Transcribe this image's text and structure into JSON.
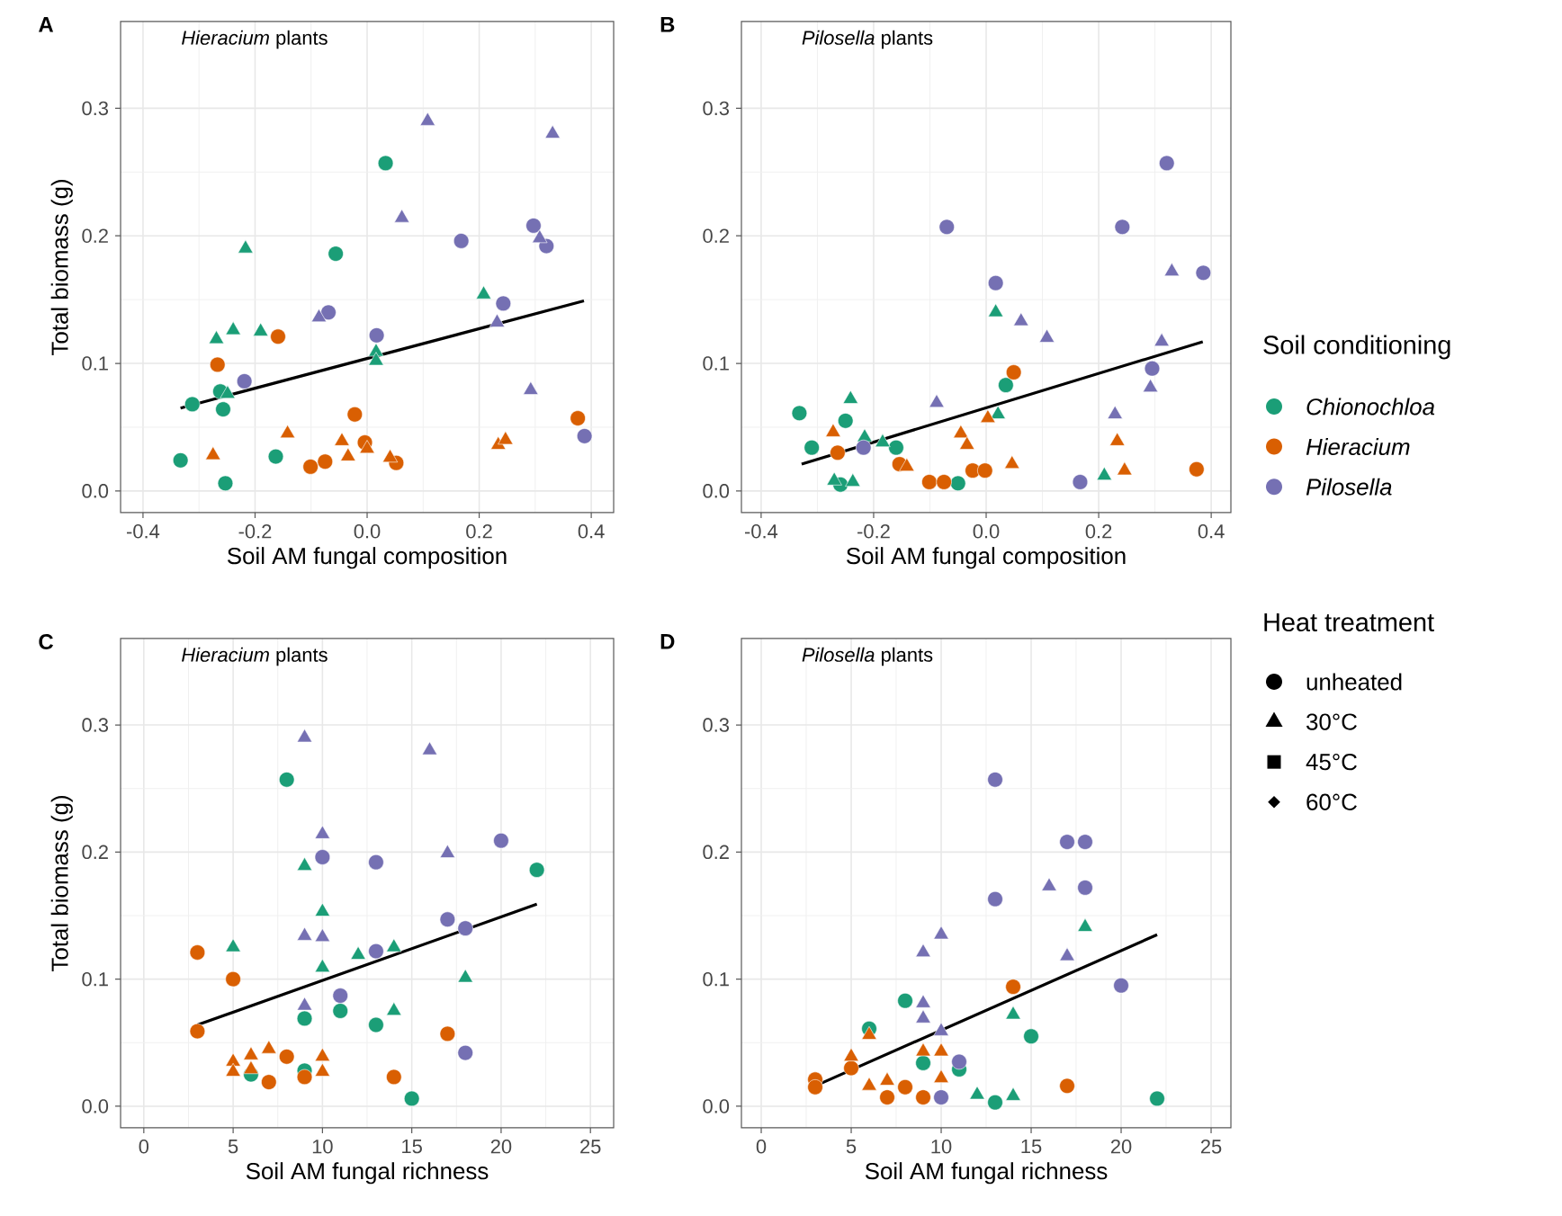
{
  "chart_data": [
    {
      "type": "scatter",
      "title": "A",
      "annotations": [
        "*Hieracium* plants"
      ],
      "xlabel": "Soil AM fungal composition",
      "ylabel": "Total biomass (g)",
      "grid": true,
      "xlim": [
        -0.44,
        0.44
      ],
      "xticks": [
        {
          "value": -0.4,
          "label": "-0.4"
        },
        {
          "value": -0.2,
          "label": "-0.2"
        },
        {
          "value": 0.0,
          "label": "0.0"
        },
        {
          "value": 0.2,
          "label": "0.2"
        },
        {
          "value": 0.4,
          "label": "0.4"
        }
      ],
      "ylim": [
        -0.017,
        0.368
      ],
      "yticks": [
        {
          "value": 0.0,
          "label": "0.0"
        },
        {
          "value": 0.1,
          "label": "0.1"
        },
        {
          "value": 0.2,
          "label": "0.2"
        },
        {
          "value": 0.3,
          "label": "0.3"
        }
      ],
      "series": [
        {
          "color": "#1b9e77",
          "marker": "circle",
          "x": [
            -0.333,
            -0.312,
            -0.257,
            -0.253,
            -0.262,
            -0.163,
            -0.056,
            0.033
          ],
          "values": [
            0.024,
            0.068,
            0.064,
            0.006,
            0.078,
            0.027,
            0.186,
            0.257
          ]
        },
        {
          "color": "#1b9e77",
          "marker": "triangle",
          "x": [
            -0.269,
            -0.249,
            -0.239,
            -0.217,
            -0.19,
            0.016,
            0.016,
            0.208
          ],
          "values": [
            0.119,
            0.076,
            0.126,
            0.19,
            0.125,
            0.109,
            0.102,
            0.154
          ]
        },
        {
          "color": "#d95f02",
          "marker": "circle",
          "x": [
            -0.267,
            -0.159,
            -0.101,
            -0.075,
            -0.022,
            -0.004,
            0.052,
            0.376
          ],
          "values": [
            0.099,
            0.121,
            0.019,
            0.023,
            0.06,
            0.038,
            0.022,
            0.057
          ]
        },
        {
          "color": "#d95f02",
          "marker": "triangle",
          "x": [
            -0.275,
            -0.142,
            -0.045,
            -0.034,
            0.0,
            0.041,
            0.234,
            0.247
          ],
          "values": [
            0.028,
            0.045,
            0.039,
            0.027,
            0.033,
            0.026,
            0.036,
            0.04
          ]
        },
        {
          "color": "#7570b3",
          "marker": "circle",
          "x": [
            -0.219,
            -0.069,
            0.017,
            0.168,
            0.243,
            0.297,
            0.32,
            0.388
          ],
          "values": [
            0.086,
            0.14,
            0.122,
            0.196,
            0.147,
            0.208,
            0.192,
            0.043
          ]
        },
        {
          "color": "#7570b3",
          "marker": "triangle",
          "x": [
            -0.086,
            0.062,
            0.108,
            0.232,
            0.292,
            0.308,
            0.331
          ],
          "values": [
            0.136,
            0.214,
            0.29,
            0.132,
            0.079,
            0.198,
            0.28
          ]
        },
        {
          "type": "line",
          "color": "#000000",
          "marker": "none",
          "x": [
            -0.333,
            0.387
          ],
          "values": [
            0.065,
            0.149
          ]
        }
      ]
    },
    {
      "type": "scatter",
      "title": "B",
      "annotations": [
        "*Pilosella* plants"
      ],
      "xlabel": "Soil AM fungal composition",
      "grid": true,
      "xlim": [
        -0.435,
        0.435
      ],
      "xticks": [
        {
          "value": -0.4,
          "label": "-0.4"
        },
        {
          "value": -0.2,
          "label": "-0.2"
        },
        {
          "value": 0.0,
          "label": "0.0"
        },
        {
          "value": 0.2,
          "label": "0.2"
        },
        {
          "value": 0.4,
          "label": "0.4"
        }
      ],
      "ylim": [
        -0.017,
        0.368
      ],
      "yticks": [
        {
          "value": 0.0,
          "label": "0.0"
        },
        {
          "value": 0.1,
          "label": "0.1"
        },
        {
          "value": 0.2,
          "label": "0.2"
        },
        {
          "value": 0.3,
          "label": "0.3"
        }
      ],
      "series": [
        {
          "color": "#1b9e77",
          "marker": "circle",
          "x": [
            -0.332,
            -0.31,
            -0.259,
            -0.25,
            -0.16,
            -0.05,
            0.035
          ],
          "values": [
            0.061,
            0.034,
            0.005,
            0.055,
            0.034,
            0.006,
            0.083
          ]
        },
        {
          "color": "#1b9e77",
          "marker": "triangle",
          "x": [
            -0.27,
            -0.241,
            -0.237,
            -0.216,
            -0.184,
            0.017,
            0.021,
            0.21
          ],
          "values": [
            0.008,
            0.072,
            0.007,
            0.042,
            0.038,
            0.14,
            0.06,
            0.012
          ]
        },
        {
          "color": "#d95f02",
          "marker": "circle",
          "x": [
            -0.264,
            -0.154,
            -0.101,
            -0.075,
            -0.024,
            -0.002,
            0.049,
            0.374
          ],
          "values": [
            0.03,
            0.021,
            0.007,
            0.007,
            0.016,
            0.016,
            0.093,
            0.017
          ]
        },
        {
          "color": "#d95f02",
          "marker": "triangle",
          "x": [
            -0.272,
            -0.141,
            -0.045,
            -0.034,
            0.003,
            0.046,
            0.233,
            0.246
          ],
          "values": [
            0.046,
            0.019,
            0.045,
            0.036,
            0.057,
            0.021,
            0.039,
            0.016
          ]
        },
        {
          "color": "#7570b3",
          "marker": "circle",
          "x": [
            -0.218,
            -0.07,
            0.017,
            0.167,
            0.242,
            0.295,
            0.321,
            0.386
          ],
          "values": [
            0.034,
            0.207,
            0.163,
            0.007,
            0.207,
            0.096,
            0.257,
            0.171
          ]
        },
        {
          "color": "#7570b3",
          "marker": "triangle",
          "x": [
            -0.088,
            0.062,
            0.108,
            0.229,
            0.292,
            0.312,
            0.33
          ],
          "values": [
            0.069,
            0.133,
            0.12,
            0.06,
            0.081,
            0.117,
            0.172
          ]
        },
        {
          "type": "line",
          "color": "#000000",
          "marker": "none",
          "x": [
            -0.328,
            0.385
          ],
          "values": [
            0.021,
            0.117
          ]
        }
      ]
    },
    {
      "type": "other",
      "legend_title": "Soil conditioning",
      "series": [
        {
          "name": "Chionochloa",
          "color": "#1b9e77",
          "marker": "circle"
        },
        {
          "name": "Hieracium",
          "color": "#d95f02",
          "marker": "circle"
        },
        {
          "name": "Pilosella",
          "color": "#7570b3",
          "marker": "circle"
        }
      ]
    },
    {
      "type": "scatter",
      "title": "C",
      "annotations": [
        "*Hieracium* plants"
      ],
      "xlabel": "Soil AM fungal richness",
      "ylabel": "Total biomass (g)",
      "grid": true,
      "xlim": [
        -1.3,
        26.3
      ],
      "xticks": [
        0,
        5,
        10,
        15,
        20,
        25
      ],
      "ylim": [
        -0.017,
        0.368
      ],
      "yticks": [
        {
          "value": 0.0,
          "label": "0.0"
        },
        {
          "value": 0.1,
          "label": "0.1"
        },
        {
          "value": 0.2,
          "label": "0.2"
        },
        {
          "value": 0.3,
          "label": "0.3"
        }
      ],
      "series": [
        {
          "color": "#1b9e77",
          "marker": "circle",
          "x": [
            6,
            8,
            9,
            9,
            11,
            13,
            15,
            22
          ],
          "values": [
            0.025,
            0.257,
            0.069,
            0.028,
            0.075,
            0.064,
            0.006,
            0.186
          ]
        },
        {
          "color": "#1b9e77",
          "marker": "triangle",
          "x": [
            5,
            9,
            10,
            10,
            12,
            14,
            14,
            18
          ],
          "values": [
            0.125,
            0.189,
            0.153,
            0.109,
            0.119,
            0.125,
            0.075,
            0.101
          ]
        },
        {
          "color": "#d95f02",
          "marker": "circle",
          "x": [
            3,
            3,
            5,
            7,
            8,
            9,
            14,
            17
          ],
          "values": [
            0.121,
            0.059,
            0.1,
            0.019,
            0.039,
            0.023,
            0.023,
            0.057
          ]
        },
        {
          "color": "#d95f02",
          "marker": "triangle",
          "x": [
            5,
            5,
            6,
            6,
            7,
            10,
            10
          ],
          "values": [
            0.035,
            0.027,
            0.04,
            0.029,
            0.045,
            0.039,
            0.027
          ]
        },
        {
          "color": "#7570b3",
          "marker": "circle",
          "x": [
            10,
            11,
            13,
            13,
            17,
            18,
            18,
            20
          ],
          "values": [
            0.196,
            0.087,
            0.192,
            0.122,
            0.147,
            0.14,
            0.042,
            0.209
          ]
        },
        {
          "color": "#7570b3",
          "marker": "triangle",
          "x": [
            9,
            9,
            9,
            10,
            10,
            16,
            17
          ],
          "values": [
            0.29,
            0.134,
            0.079,
            0.214,
            0.133,
            0.28,
            0.199
          ]
        },
        {
          "type": "line",
          "color": "#000000",
          "marker": "none",
          "x": [
            3,
            22
          ],
          "values": [
            0.064,
            0.159
          ]
        }
      ]
    },
    {
      "type": "scatter",
      "title": "D",
      "annotations": [
        "*Pilosella* plants"
      ],
      "xlabel": "Soil AM fungal richness",
      "grid": true,
      "xlim": [
        -1.1,
        26.1
      ],
      "xticks": [
        0,
        5,
        10,
        15,
        20,
        25
      ],
      "ylim": [
        -0.017,
        0.368
      ],
      "yticks": [
        {
          "value": 0.0,
          "label": "0.0"
        },
        {
          "value": 0.1,
          "label": "0.1"
        },
        {
          "value": 0.2,
          "label": "0.2"
        },
        {
          "value": 0.3,
          "label": "0.3"
        }
      ],
      "series": [
        {
          "color": "#1b9e77",
          "marker": "circle",
          "x": [
            6,
            8,
            9,
            11,
            13,
            15,
            22
          ],
          "values": [
            0.061,
            0.083,
            0.034,
            0.029,
            0.003,
            0.055,
            0.006
          ]
        },
        {
          "color": "#1b9e77",
          "marker": "triangle",
          "x": [
            12,
            14,
            14,
            18
          ],
          "values": [
            0.009,
            0.008,
            0.072,
            0.141
          ]
        },
        {
          "color": "#d95f02",
          "marker": "circle",
          "x": [
            3,
            3,
            5,
            7,
            8,
            9,
            14,
            17
          ],
          "values": [
            0.021,
            0.015,
            0.03,
            0.007,
            0.015,
            0.007,
            0.094,
            0.016
          ]
        },
        {
          "color": "#d95f02",
          "marker": "triangle",
          "x": [
            5,
            6,
            6,
            7,
            9,
            10,
            10
          ],
          "values": [
            0.039,
            0.056,
            0.016,
            0.02,
            0.043,
            0.043,
            0.022
          ]
        },
        {
          "color": "#7570b3",
          "marker": "circle",
          "x": [
            10,
            11,
            13,
            13,
            17,
            18,
            18,
            20
          ],
          "values": [
            0.007,
            0.035,
            0.257,
            0.163,
            0.208,
            0.208,
            0.172,
            0.095
          ]
        },
        {
          "color": "#7570b3",
          "marker": "triangle",
          "x": [
            9,
            9,
            9,
            10,
            10,
            16,
            17
          ],
          "values": [
            0.121,
            0.081,
            0.069,
            0.135,
            0.059,
            0.173,
            0.118
          ]
        },
        {
          "type": "line",
          "color": "#000000",
          "marker": "none",
          "x": [
            3,
            22
          ],
          "values": [
            0.016,
            0.135
          ]
        }
      ]
    },
    {
      "type": "other",
      "legend_title": "Heat treatment",
      "series": [
        {
          "name": "unheated",
          "color": "#000000",
          "marker": "circle"
        },
        {
          "name": "30°C",
          "color": "#000000",
          "marker": "triangle"
        },
        {
          "name": "45°C",
          "color": "#000000",
          "marker": "square"
        },
        {
          "name": "60°C",
          "color": "#000000",
          "marker": "diamond"
        }
      ]
    }
  ]
}
